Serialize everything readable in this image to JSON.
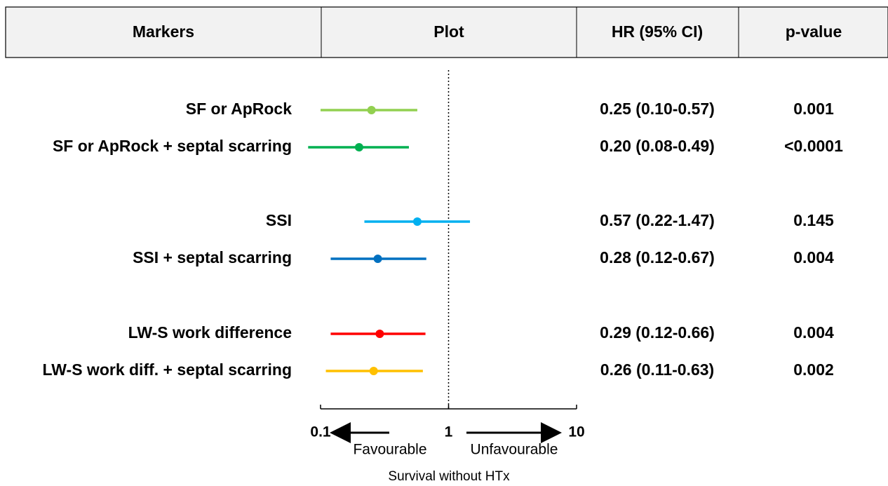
{
  "chart_data": {
    "type": "forest",
    "columns": [
      "Markers",
      "Plot",
      "HR (95% CI)",
      "p-value"
    ],
    "categories": [
      "SF or ApRock",
      "SF or ApRock + septal scarring",
      "SSI",
      "SSI + septal scarring",
      "LW-S work difference",
      "LW-S work diff. + septal scarring"
    ],
    "values": [
      0.25,
      0.2,
      0.57,
      0.28,
      0.29,
      0.26
    ],
    "lower": [
      0.1,
      0.08,
      0.22,
      0.12,
      0.12,
      0.11
    ],
    "upper": [
      0.57,
      0.49,
      1.47,
      0.67,
      0.66,
      0.63
    ],
    "value_labels": [
      "0.25 (0.10-0.57)",
      "0.20 (0.08-0.49)",
      "0.57 (0.22-1.47)",
      "0.28 (0.12-0.67)",
      "0.29 (0.12-0.66)",
      "0.26 (0.11-0.63)"
    ],
    "p_values": [
      "0.001",
      "<0.0001",
      "0.145",
      "0.004",
      "0.004",
      "0.002"
    ],
    "colors": [
      "#92d050",
      "#00b050",
      "#00b0f0",
      "#0070c0",
      "#ff0000",
      "#ffc000"
    ],
    "xlim": [
      0.1,
      10
    ],
    "xticks": [
      0.1,
      1,
      10
    ],
    "xscale": "log",
    "reference_line": 1,
    "annotations": [
      "Favourable",
      "Unfavourable"
    ],
    "xlabel": "Survival without HTx"
  }
}
